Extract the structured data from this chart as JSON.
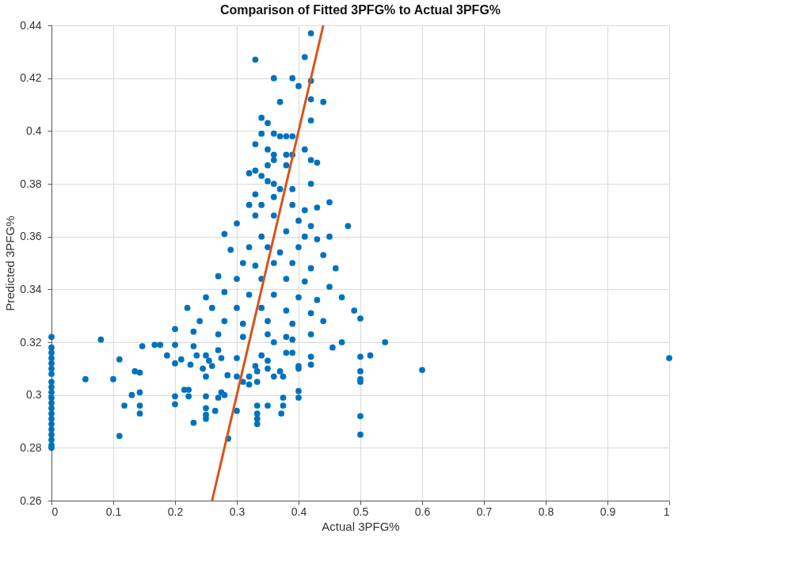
{
  "chart_data": {
    "type": "scatter",
    "title": "Comparison of Fitted 3PFG% to Actual 3PFG%",
    "xlabel": "Actual 3PFG%",
    "ylabel": "Predicted 3PFG%",
    "xlim": [
      0,
      1
    ],
    "xticks": [
      0,
      0.1,
      0.2,
      0.3,
      0.4,
      0.5,
      0.6,
      0.7,
      0.8,
      0.9,
      1
    ],
    "ylim": [
      0.26,
      0.44
    ],
    "yticks": [
      0.26,
      0.28,
      0.3,
      0.32,
      0.34,
      0.36,
      0.38,
      0.4,
      0.42,
      0.44
    ],
    "grid": true,
    "series": [
      {
        "marker": "circle",
        "color": "#0072bd",
        "x": [
          0.42,
          0.41,
          0.33,
          0.36,
          0.39,
          0.42,
          0.4,
          0.42,
          0.37,
          0.44,
          0.34,
          0.35,
          0.42,
          0.34,
          0.36,
          0.37,
          0.38,
          0.39,
          0.33,
          0.35,
          0.41,
          0.36,
          0.38,
          0.39,
          0.42,
          0.43,
          0.36,
          0.35,
          0.38,
          0.32,
          0.33,
          0.34,
          0.35,
          0.36,
          0.42,
          0.37,
          0.33,
          0.36,
          0.39,
          0.32,
          0.34,
          0.43,
          0.45,
          0.39,
          0.41,
          0.3,
          0.33,
          0.36,
          0.4,
          0.42,
          0.28,
          0.34,
          0.38,
          0.41,
          0.43,
          0.45,
          0.48,
          0.29,
          0.32,
          0.35,
          0.37,
          0.4,
          0.44,
          0.31,
          0.33,
          0.36,
          0.39,
          0.42,
          0.46,
          0.27,
          0.3,
          0.34,
          0.38,
          0.41,
          0.45,
          0.25,
          0.28,
          0.32,
          0.36,
          0.4,
          0.43,
          0.47,
          0.22,
          0.26,
          0.3,
          0.34,
          0.38,
          0.42,
          0.49,
          0.24,
          0.28,
          0.31,
          0.35,
          0.39,
          0.44,
          0.5,
          0.2,
          0.23,
          0.27,
          0.31,
          0.35,
          0.38,
          0.42,
          0.47,
          0.54,
          0,
          0.08,
          0.36,
          0.39,
          0.147,
          0.167,
          0.176,
          0.187,
          0.2,
          0.21,
          0.2,
          0.225,
          0.23,
          0.235,
          0.245,
          0.25,
          0.255,
          0.25,
          0.26,
          0.27,
          0.275,
          0.285,
          0.3,
          0.3,
          0.31,
          0.32,
          0.32,
          0.33,
          0.333,
          0.333,
          0.34,
          0.35,
          0.35,
          0.36,
          0.37,
          0.375,
          0.38,
          0.39,
          0.4,
          0.4,
          0.42,
          0.42,
          0.455,
          0.5,
          0.516,
          0.055,
          0.1,
          0.11,
          0.118,
          0.11,
          0.13,
          0.135,
          0.143,
          0.143,
          0.143,
          0.143,
          0.2,
          0.2,
          0.215,
          0.222,
          0.222,
          0.23,
          0.25,
          0.25,
          0.25,
          0.25,
          0.265,
          0.27,
          0.275,
          0.28,
          0.286,
          0.3,
          0.333,
          0.333,
          0.333,
          0.333,
          0.35,
          0.372,
          0.375,
          0.375,
          0.4,
          0.4,
          0.5,
          0.5,
          0.5,
          0.5,
          0.5,
          0.6,
          1,
          0,
          0,
          0,
          0,
          0,
          0,
          0,
          0,
          0,
          0,
          0,
          0,
          0,
          0,
          0,
          0,
          0,
          0,
          0,
          0
        ],
        "values": [
          0.437,
          0.428,
          0.427,
          0.42,
          0.42,
          0.419,
          0.417,
          0.412,
          0.411,
          0.411,
          0.405,
          0.403,
          0.404,
          0.399,
          0.399,
          0.398,
          0.398,
          0.398,
          0.395,
          0.393,
          0.393,
          0.391,
          0.391,
          0.391,
          0.389,
          0.388,
          0.389,
          0.387,
          0.387,
          0.384,
          0.385,
          0.383,
          0.381,
          0.38,
          0.38,
          0.378,
          0.376,
          0.375,
          0.378,
          0.372,
          0.372,
          0.371,
          0.373,
          0.372,
          0.37,
          0.365,
          0.368,
          0.368,
          0.366,
          0.364,
          0.361,
          0.36,
          0.362,
          0.36,
          0.359,
          0.36,
          0.364,
          0.355,
          0.356,
          0.356,
          0.354,
          0.356,
          0.353,
          0.35,
          0.349,
          0.35,
          0.35,
          0.348,
          0.348,
          0.345,
          0.344,
          0.344,
          0.344,
          0.343,
          0.341,
          0.337,
          0.339,
          0.338,
          0.338,
          0.337,
          0.336,
          0.337,
          0.333,
          0.333,
          0.333,
          0.333,
          0.332,
          0.331,
          0.332,
          0.328,
          0.328,
          0.327,
          0.328,
          0.327,
          0.328,
          0.329,
          0.325,
          0.324,
          0.323,
          0.322,
          0.323,
          0.322,
          0.323,
          0.32,
          0.32,
          0.322,
          0.321,
          0.32,
          0.321,
          0.3185,
          0.319,
          0.319,
          0.315,
          0.319,
          0.3135,
          0.312,
          0.3115,
          0.3185,
          0.315,
          0.31,
          0.315,
          0.313,
          0.307,
          0.311,
          0.317,
          0.314,
          0.3075,
          0.314,
          0.307,
          0.305,
          0.307,
          0.304,
          0.311,
          0.309,
          0.305,
          0.315,
          0.313,
          0.31,
          0.307,
          0.309,
          0.307,
          0.316,
          0.316,
          0.31,
          0.311,
          0.3115,
          0.3145,
          0.318,
          0.3145,
          0.315,
          0.306,
          0.306,
          0.3135,
          0.296,
          0.2845,
          0.3,
          0.309,
          0.3085,
          0.301,
          0.296,
          0.293,
          0.2995,
          0.2965,
          0.302,
          0.302,
          0.2995,
          0.2895,
          0.2995,
          0.295,
          0.2925,
          0.291,
          0.294,
          0.299,
          0.301,
          0.3,
          0.2835,
          0.294,
          0.296,
          0.293,
          0.291,
          0.289,
          0.296,
          0.293,
          0.296,
          0.299,
          0.3015,
          0.299,
          0.309,
          0.306,
          0.305,
          0.292,
          0.285,
          0.3095,
          0.314,
          0.318,
          0.316,
          0.314,
          0.312,
          0.31,
          0.308,
          0.305,
          0.303,
          0.301,
          0.299,
          0.297,
          0.295,
          0.293,
          0.291,
          0.289,
          0.287,
          0.285,
          0.283,
          0.281,
          0.28
        ]
      },
      {
        "type": "line",
        "line_style": "solid",
        "color": "#d95319",
        "x": [
          0.26,
          0.44
        ],
        "values": [
          0.26,
          0.44
        ]
      }
    ]
  }
}
